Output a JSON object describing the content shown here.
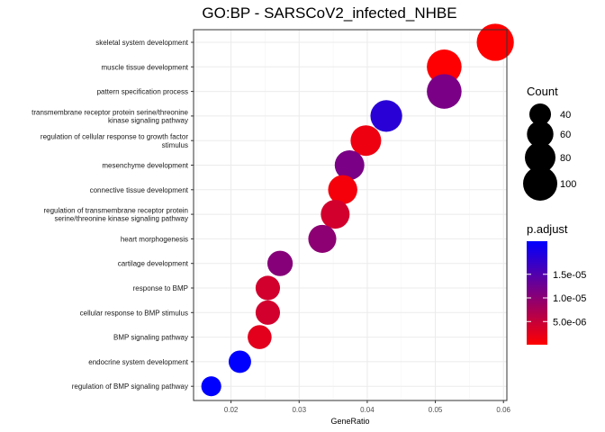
{
  "chart_data": {
    "type": "scatter",
    "title": "GO:BP - SARSCoV2_infected_NHBE",
    "xlabel": "GeneRatio",
    "ylabel": "",
    "xlim": [
      0.0145,
      0.0605
    ],
    "xticks": [
      0.02,
      0.03,
      0.04,
      0.05,
      0.06
    ],
    "xtick_labels": [
      "0.02",
      "0.03",
      "0.04",
      "0.05",
      "0.06"
    ],
    "grid": true,
    "legend_position": "right",
    "points": [
      {
        "term": "skeletal system development",
        "gene_ratio": 0.0588,
        "count": 118,
        "p_adjust": 1e-07
      },
      {
        "term": "muscle tissue development",
        "gene_ratio": 0.0513,
        "count": 103,
        "p_adjust": 2e-07
      },
      {
        "term": "pattern specification process",
        "gene_ratio": 0.0513,
        "count": 103,
        "p_adjust": 1.15e-05
      },
      {
        "term": "transmembrane receptor protein serine/threonine\nkinase signaling pathway",
        "gene_ratio": 0.0428,
        "count": 86,
        "p_adjust": 1.85e-05
      },
      {
        "term": "regulation of cellular response to growth factor\nstimulus",
        "gene_ratio": 0.0398,
        "count": 80,
        "p_adjust": 1.5e-06
      },
      {
        "term": "mesenchyme development",
        "gene_ratio": 0.0374,
        "count": 75,
        "p_adjust": 1.15e-05
      },
      {
        "term": "connective tissue development",
        "gene_ratio": 0.0364,
        "count": 73,
        "p_adjust": 1e-06
      },
      {
        "term": "regulation of transmembrane receptor protein\nserine/threonine kinase signaling pathway",
        "gene_ratio": 0.0353,
        "count": 71,
        "p_adjust": 4e-06
      },
      {
        "term": "heart morphogenesis",
        "gene_ratio": 0.0334,
        "count": 67,
        "p_adjust": 1e-05
      },
      {
        "term": "cartilage development",
        "gene_ratio": 0.0272,
        "count": 55,
        "p_adjust": 1.05e-05
      },
      {
        "term": "response to BMP",
        "gene_ratio": 0.0254,
        "count": 51,
        "p_adjust": 4e-06
      },
      {
        "term": "cellular response to BMP stimulus",
        "gene_ratio": 0.0254,
        "count": 51,
        "p_adjust": 4e-06
      },
      {
        "term": "BMP signaling pathway",
        "gene_ratio": 0.0242,
        "count": 49,
        "p_adjust": 2.5e-06
      },
      {
        "term": "endocrine system development",
        "gene_ratio": 0.0213,
        "count": 43,
        "p_adjust": 2.2e-05
      },
      {
        "term": "regulation of BMP signaling pathway",
        "gene_ratio": 0.0171,
        "count": 34,
        "p_adjust": 2.2e-05
      }
    ],
    "legend_count": {
      "title": "Count",
      "values": [
        40,
        60,
        80,
        100
      ],
      "labels": [
        "40",
        "60",
        "80",
        "100"
      ]
    },
    "legend_p_adjust": {
      "title": "p.adjust",
      "range": [
        1e-07,
        2.2e-05
      ],
      "ticks": [
        5e-06,
        1e-05,
        1.5e-05
      ],
      "tick_labels": [
        "5.0e-06",
        "1.0e-05",
        "1.5e-05"
      ],
      "color_low": "#ff0000",
      "color_high": "#0000ff"
    },
    "colors": {
      "panel_border": "#333333",
      "grid_major": "#ebebeb",
      "grid_minor": "#f5f5f5"
    }
  }
}
